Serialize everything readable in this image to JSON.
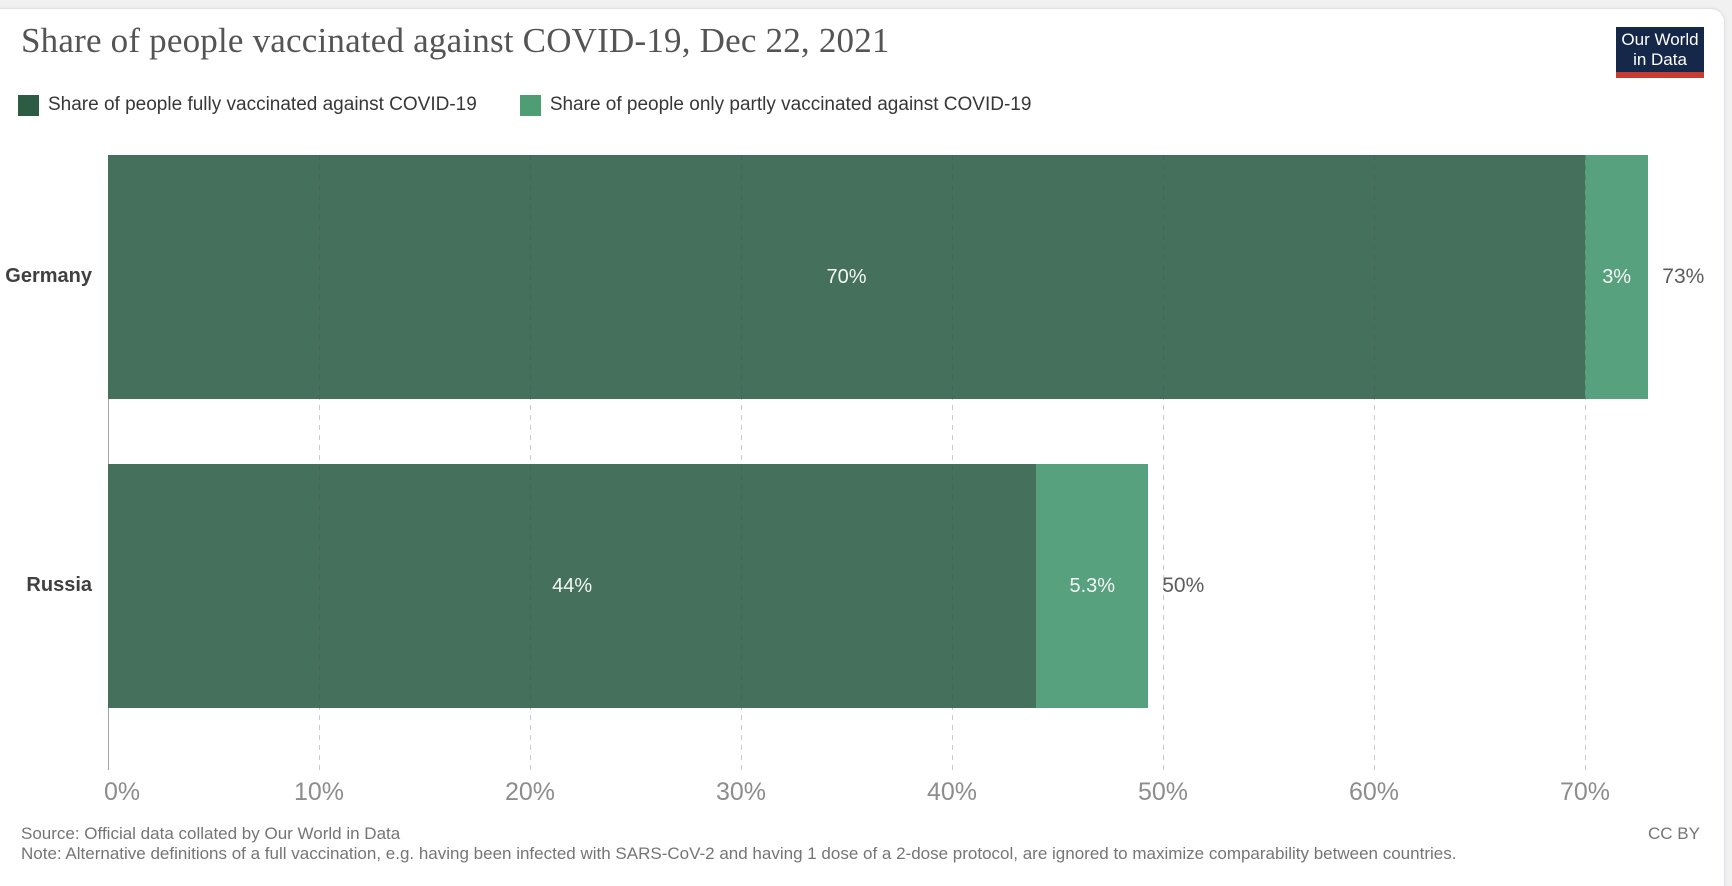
{
  "header": {
    "title": "Share of people vaccinated against COVID-19, Dec 22, 2021",
    "logo": {
      "line1": "Our World",
      "line2": "in Data",
      "bg": "#16284a",
      "accent": "#c83c32"
    }
  },
  "legend": {
    "items": [
      {
        "label": "Share of people fully vaccinated against COVID-19",
        "swatch": "#2c5c43"
      },
      {
        "label": "Share of people only partly vaccinated against COVID-19",
        "swatch": "#4f9d73"
      }
    ]
  },
  "chart_data": {
    "type": "bar",
    "orientation": "horizontal",
    "stacked": true,
    "title": "Share of people vaccinated against COVID-19, Dec 22, 2021",
    "categories": [
      "Germany",
      "Russia"
    ],
    "series": [
      {
        "name": "Share of people fully vaccinated against COVID-19",
        "color": "#45705b",
        "values": [
          70,
          44
        ],
        "labels": [
          "70%",
          "44%"
        ]
      },
      {
        "name": "Share of people only partly vaccinated against COVID-19",
        "color": "#57a17e",
        "values": [
          3,
          5.3
        ],
        "labels": [
          "3%",
          "5.3%"
        ]
      }
    ],
    "totals": {
      "values": [
        73,
        50
      ],
      "labels": [
        "73%",
        "50%"
      ]
    },
    "x_axis": {
      "ticks": [
        0,
        10,
        20,
        30,
        40,
        50,
        60,
        70
      ],
      "tick_labels": [
        "0%",
        "10%",
        "20%",
        "30%",
        "40%",
        "50%",
        "60%",
        "70%"
      ],
      "min": 0,
      "max": 73
    },
    "grid": true,
    "legend_position": "top",
    "value_label_color": "#f3f6f5",
    "total_label_color": "#5c5c5c"
  },
  "footer": {
    "source": "Source: Official data collated by Our World in Data",
    "note": "Note: Alternative definitions of a full vaccination, e.g. having been infected with SARS-CoV-2 and having 1 dose of a 2-dose protocol, are ignored to maximize comparability between countries.",
    "license": "CC BY"
  }
}
